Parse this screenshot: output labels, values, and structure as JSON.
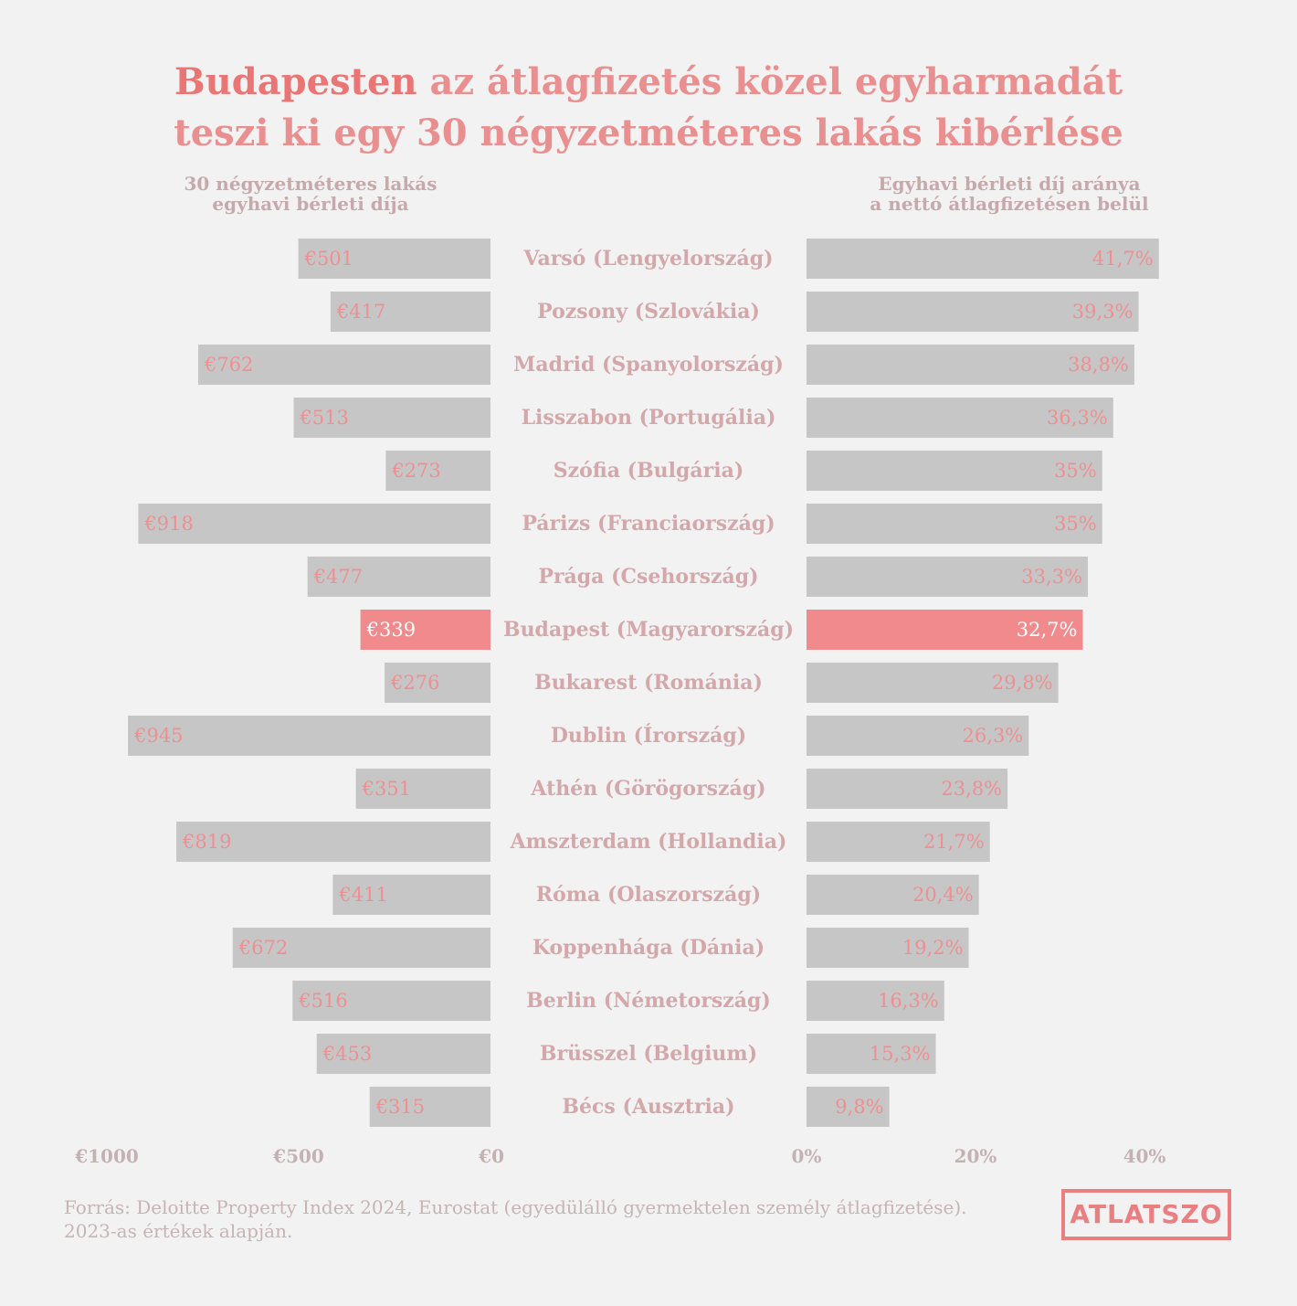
{
  "title": {
    "highlight": "Budapesten",
    "line1_rest": " az átlagfizetés közel egyharmadát",
    "line2": "teszi ki egy 30 négyzetméteres lakás kibérlése"
  },
  "left_header": {
    "line1": "30 négyzetméteres lakás",
    "line2": "egyhavi bérleti díja"
  },
  "right_header": {
    "line1": "Egyhavi bérleti díj aránya",
    "line2": "a nettó átlagfizetésen belül"
  },
  "chart_data": {
    "type": "bar",
    "orientation": "horizontal",
    "categories": [
      "Varsó (Lengyelország)",
      "Pozsony (Szlovákia)",
      "Madrid (Spanyolország)",
      "Lisszabon (Portugália)",
      "Szófia (Bulgária)",
      "Párizs (Franciaország)",
      "Prága (Csehország)",
      "Budapest (Magyarország)",
      "Bukarest (Románia)",
      "Dublin (Írország)",
      "Athén (Görögország)",
      "Amszterdam (Hollandia)",
      "Róma (Olaszország)",
      "Koppenhága (Dánia)",
      "Berlin (Németország)",
      "Brüsszel (Belgium)",
      "Bécs (Ausztria)"
    ],
    "highlight_category": "Budapest (Magyarország)",
    "series": [
      {
        "name": "30 négyzetméteres lakás egyhavi bérleti díja",
        "values": [
          501,
          417,
          762,
          513,
          273,
          918,
          477,
          339,
          276,
          945,
          351,
          819,
          411,
          672,
          516,
          453,
          315
        ],
        "labels": [
          "€501",
          "€417",
          "€762",
          "€513",
          "€273",
          "€918",
          "€477",
          "€339",
          "€276",
          "€945",
          "€351",
          "€819",
          "€411",
          "€672",
          "€516",
          "€453",
          "€315"
        ],
        "axis_ticks": [
          "€1000",
          "€500",
          "€0"
        ],
        "axis_tick_values": [
          1000,
          500,
          0
        ],
        "xlim": [
          0,
          1000
        ],
        "direction": "right-to-left"
      },
      {
        "name": "Egyhavi bérleti díj aránya a nettó átlagfizetésen belül",
        "values": [
          41.7,
          39.3,
          38.8,
          36.3,
          35,
          35,
          33.3,
          32.7,
          29.8,
          26.3,
          23.8,
          21.7,
          20.4,
          19.2,
          16.3,
          15.3,
          9.8
        ],
        "labels": [
          "41,7%",
          "39,3%",
          "38,8%",
          "36,3%",
          "35%",
          "35%",
          "33,3%",
          "32,7%",
          "29,8%",
          "26,3%",
          "23,8%",
          "21,7%",
          "20,4%",
          "19,2%",
          "16,3%",
          "15,3%",
          "9,8%"
        ],
        "axis_ticks": [
          "0%",
          "20%",
          "40%"
        ],
        "axis_tick_values": [
          0,
          20,
          40
        ],
        "xlim": [
          0,
          40
        ],
        "direction": "left-to-right"
      }
    ],
    "grid": false,
    "colors": {
      "bar": "#c6c6c6",
      "highlight_bar": "#f08a8d",
      "value_label": "#ef8f92",
      "highlight_value_label": "#ffffff",
      "category_label": "#d4a8aa",
      "tick_label": "#c4b2b2",
      "background": "#f2f2f2"
    }
  },
  "footer": {
    "line1": "Forrás: Deloitte Property Index 2024, Eurostat (egyedülálló gyermektelen személy átlagfizetése).",
    "line2": "2023-as értékek alapján."
  },
  "logo": {
    "text": "ATLATSZO"
  }
}
